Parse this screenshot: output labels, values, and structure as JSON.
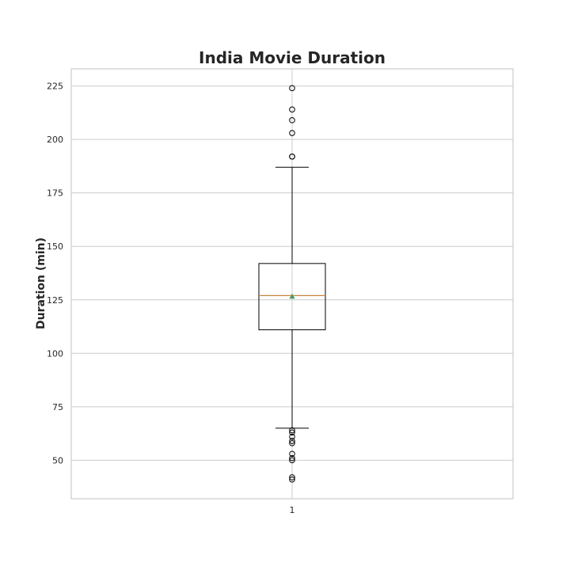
{
  "chart_data": {
    "type": "box",
    "title": "India Movie Duration",
    "xlabel": "",
    "ylabel": "Duration (min)",
    "x_ticks": [
      "1"
    ],
    "y_ticks": [
      50,
      75,
      100,
      125,
      150,
      175,
      200,
      225
    ],
    "ylim": [
      32,
      233
    ],
    "grid": true,
    "series": [
      {
        "category": "1",
        "whisker_low": 65,
        "q1": 111,
        "median": 127,
        "q3": 142,
        "whisker_high": 187,
        "mean": 126.5,
        "outliers": [
          224,
          214,
          209,
          203,
          192,
          192,
          64,
          63,
          61,
          59,
          58,
          53,
          51,
          50,
          42,
          41
        ]
      }
    ],
    "colors": {
      "box": "#000000",
      "median": "#c9853d",
      "mean": "#4c9a5e",
      "grid": "#cccccc",
      "frame": "#cccccc"
    }
  }
}
